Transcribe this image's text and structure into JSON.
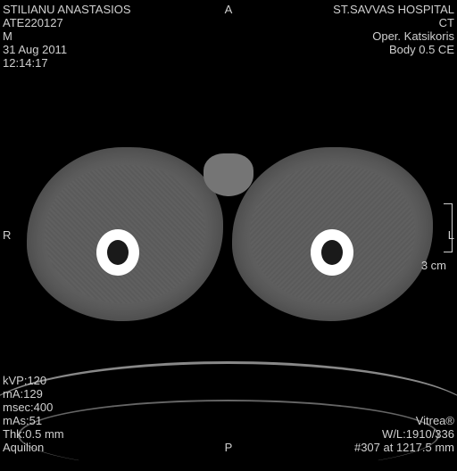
{
  "patient": {
    "name": "STILIANU ANASTASIOS",
    "id": "ATE220127",
    "sex": "M",
    "date": "31 Aug 2011",
    "time": "12:14:17"
  },
  "header": {
    "center_marker": "A",
    "hospital": "ST.SAVVAS HOSPITAL",
    "modality": "CT",
    "operator": "Oper. Katsikoris",
    "protocol": "Body 0.5 CE"
  },
  "orientation": {
    "right": "R",
    "left": "L",
    "posterior": "P"
  },
  "scale": {
    "label": "3 cm"
  },
  "acquisition": {
    "kvp": "kVP:120",
    "ma": "mA:129",
    "msec": "msec:400",
    "mas": "mAs:51",
    "thk": "Thk:0.5 mm",
    "scanner": "Aquilion"
  },
  "footer": {
    "software": "Vitrea®",
    "window": "W/L:1910/336",
    "slice": "#307 at 1217.5 mm"
  },
  "colors": {
    "background": "#000000",
    "text": "#d0d0d0",
    "tissue": "#5e5e5e",
    "bone": "#ffffff"
  }
}
